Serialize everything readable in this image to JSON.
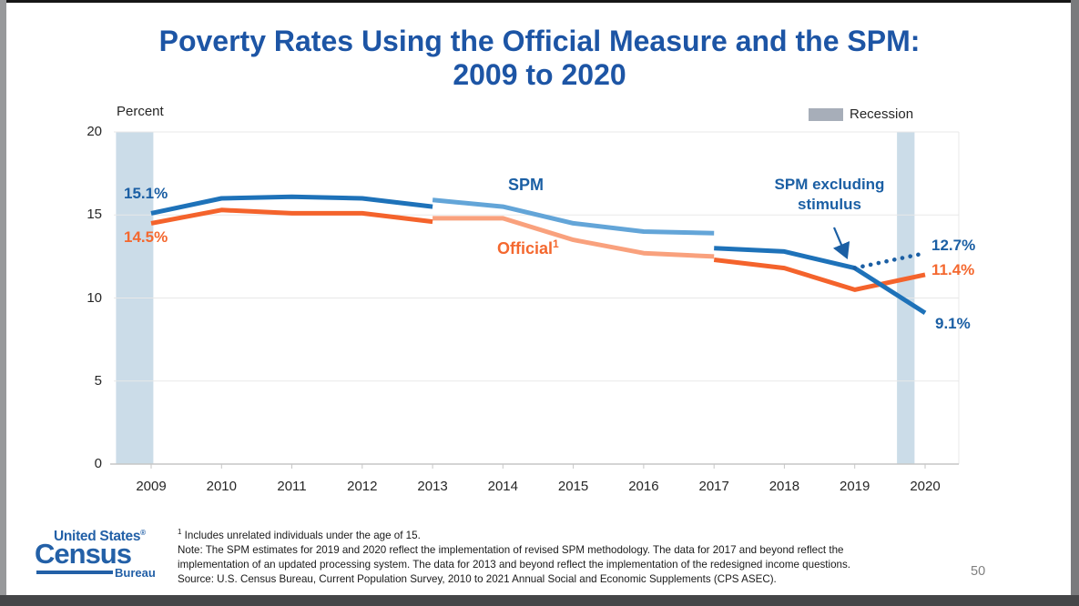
{
  "slide": {
    "page_number": "50"
  },
  "title": {
    "line1": "Poverty Rates Using the Official Measure and the SPM:",
    "line2": "2009 to 2020"
  },
  "chart": {
    "y_axis_title": "Percent",
    "legend_label": "Recession"
  },
  "annotations": {
    "spm_label": "SPM",
    "official_label": "Official",
    "official_footnote_marker": "1",
    "spm_excluding_stimulus_label": "SPM excluding stimulus",
    "spm_2009_value": "15.1%",
    "official_2009_value": "14.5%",
    "spm_excl_stimulus_2020_value": "12.7%",
    "official_2020_value": "11.4%",
    "spm_2020_value": "9.1%"
  },
  "footnotes": {
    "footnote_marker": "1",
    "footnote_text": " Includes unrelated individuals under the age of 15.",
    "note_line1": "Note: The SPM estimates for 2019 and 2020 reflect the implementation of revised SPM methodology. The data for 2017 and beyond reflect the",
    "note_line2": "implementation of an updated processing system. The data for 2013 and beyond reflect the implementation of the redesigned income questions.",
    "source": "Source: U.S. Census Bureau, Current Population Survey, 2010 to 2021 Annual Social and Economic Supplements (CPS ASEC)."
  },
  "logo": {
    "united_states": "United States",
    "registered": "®",
    "census": "Census",
    "bureau": "Bureau"
  },
  "colors": {
    "title_blue": "#1d55a5",
    "label_blue": "#1b5fa4",
    "label_orange": "#f4682f",
    "spm_dark": "#1e72b9",
    "spm_light": "#63a5d8",
    "official_dark": "#f4632c",
    "official_light": "#f9a17d",
    "recession_band": "#cbdce8",
    "legend_swatch": "#a7aeb9",
    "gridline": "#e8e8e8",
    "axis": "#c6c6c6",
    "text_dark": "#262626",
    "page_number_gray": "#7f7f7f",
    "logo_blue": "#2360a7"
  },
  "chart_data": {
    "type": "line",
    "title": "Poverty Rates Using the Official Measure and the SPM: 2009 to 2020",
    "xlabel": "",
    "ylabel": "Percent",
    "ylim": [
      0,
      20
    ],
    "yticks": [
      0,
      5,
      10,
      15,
      20
    ],
    "grid": "horizontal",
    "legend_position": "top-right",
    "years": [
      2009,
      2010,
      2011,
      2012,
      2013,
      2014,
      2015,
      2016,
      2017,
      2018,
      2019,
      2020
    ],
    "series": [
      {
        "id": "official_2009_2013",
        "name": "Official (2009-2013)",
        "color": "#f4632c",
        "style": "solid",
        "points": [
          [
            2009,
            14.5
          ],
          [
            2010,
            15.3
          ],
          [
            2011,
            15.1
          ],
          [
            2012,
            15.1
          ],
          [
            2013,
            14.6
          ]
        ]
      },
      {
        "id": "official_2013_2017",
        "name": "Official (2013-2017, redesigned income questions)",
        "color": "#f9a17d",
        "style": "solid",
        "points": [
          [
            2013,
            14.8
          ],
          [
            2014,
            14.8
          ],
          [
            2015,
            13.5
          ],
          [
            2016,
            12.7
          ],
          [
            2017,
            12.5
          ]
        ]
      },
      {
        "id": "official_2017_2020",
        "name": "Official (2017-2020, updated processing system)",
        "color": "#f4632c",
        "style": "solid",
        "points": [
          [
            2017,
            12.3
          ],
          [
            2018,
            11.8
          ],
          [
            2019,
            10.5
          ],
          [
            2020,
            11.4
          ]
        ]
      },
      {
        "id": "spm_2009_2013",
        "name": "SPM (2009-2013)",
        "color": "#1e72b9",
        "style": "solid",
        "points": [
          [
            2009,
            15.1
          ],
          [
            2010,
            16.0
          ],
          [
            2011,
            16.1
          ],
          [
            2012,
            16.0
          ],
          [
            2013,
            15.5
          ]
        ]
      },
      {
        "id": "spm_2013_2017",
        "name": "SPM (2013-2017, redesigned income questions)",
        "color": "#63a5d8",
        "style": "solid",
        "points": [
          [
            2013,
            15.9
          ],
          [
            2014,
            15.5
          ],
          [
            2015,
            14.5
          ],
          [
            2016,
            14.0
          ],
          [
            2017,
            13.9
          ]
        ]
      },
      {
        "id": "spm_2017_2020",
        "name": "SPM (2017-2020, updated processing system)",
        "color": "#1e72b9",
        "style": "solid",
        "points": [
          [
            2017,
            13.0
          ],
          [
            2018,
            12.8
          ],
          [
            2019,
            11.8
          ],
          [
            2020,
            9.1
          ]
        ]
      },
      {
        "id": "spm_excluding_stimulus",
        "name": "SPM excluding stimulus",
        "color": "#1b5fa4",
        "style": "dotted",
        "points": [
          [
            2019,
            11.8
          ],
          [
            2020,
            12.7
          ]
        ]
      }
    ],
    "recession_bands": [
      {
        "label": "Recession",
        "from": 2008.5,
        "to": 2009.03
      },
      {
        "label": "Recession",
        "from": 2019.6,
        "to": 2019.85
      }
    ],
    "point_labels": [
      {
        "text": "15.1%",
        "series": "spm_2009_2013",
        "year": 2009,
        "value": 15.1
      },
      {
        "text": "14.5%",
        "series": "official_2009_2013",
        "year": 2009,
        "value": 14.5
      },
      {
        "text": "12.7%",
        "series": "spm_excluding_stimulus",
        "year": 2020,
        "value": 12.7
      },
      {
        "text": "11.4%",
        "series": "official_2017_2020",
        "year": 2020,
        "value": 11.4
      },
      {
        "text": "9.1%",
        "series": "spm_2017_2020",
        "year": 2020,
        "value": 9.1
      }
    ]
  }
}
